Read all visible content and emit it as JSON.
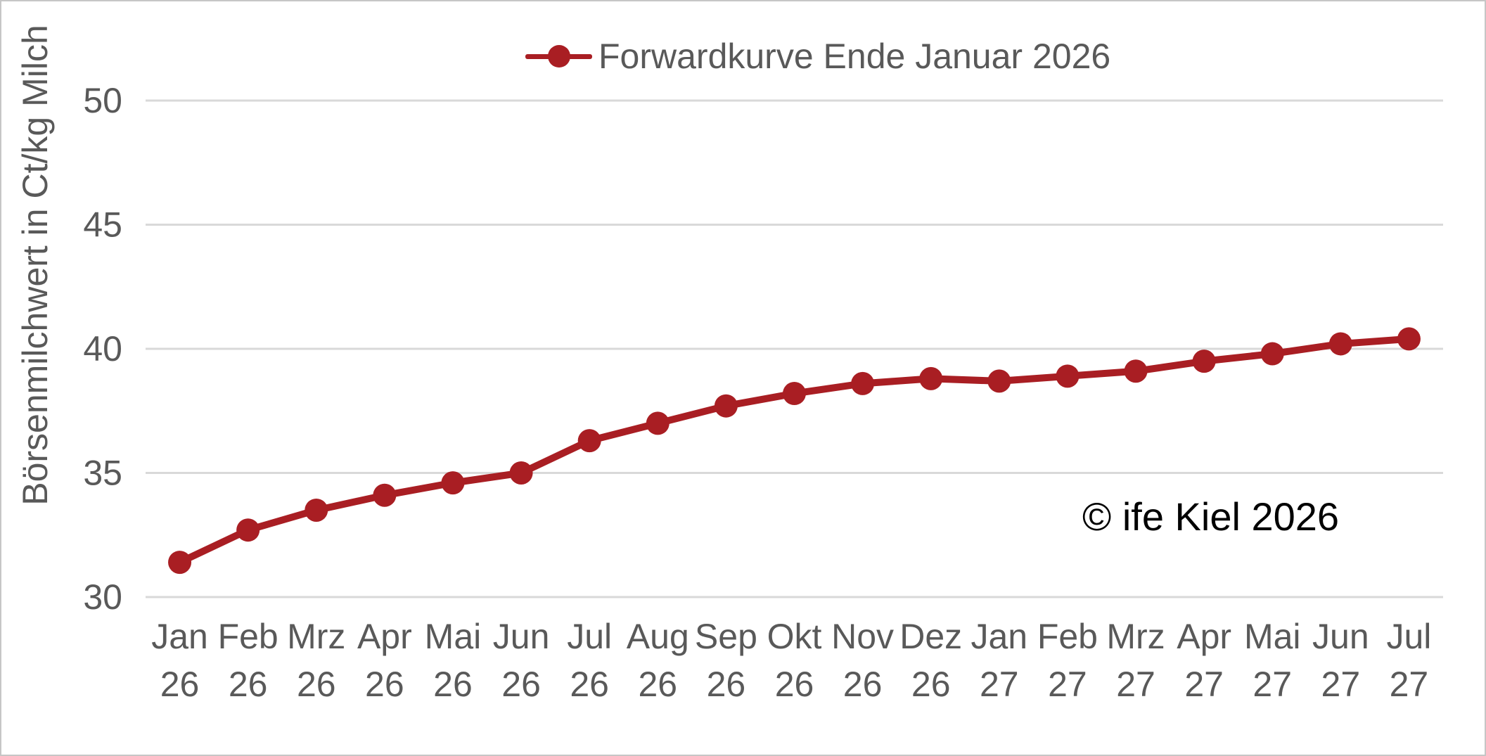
{
  "chart_data": {
    "type": "line",
    "title": "",
    "xlabel": "",
    "ylabel": "Börsenmilchwert in Ct/kg Milch",
    "ylim": [
      30,
      50
    ],
    "yticks": [
      30,
      35,
      40,
      45,
      50
    ],
    "grid": "horizontal",
    "legend_position": "top-center",
    "categories": [
      "Jan 26",
      "Feb 26",
      "Mrz 26",
      "Apr 26",
      "Mai 26",
      "Jun 26",
      "Jul 26",
      "Aug 26",
      "Sep 26",
      "Okt 26",
      "Nov 26",
      "Dez 26",
      "Jan 27",
      "Feb 27",
      "Mrz 27",
      "Apr 27",
      "Mai 27",
      "Jun 27",
      "Jul 27"
    ],
    "series": [
      {
        "name": "Forwardkurve Ende Januar 2026",
        "marker": "circle",
        "color": "#A91E23",
        "values": [
          31.4,
          32.7,
          33.5,
          34.1,
          34.6,
          35.0,
          36.3,
          37.0,
          37.7,
          38.2,
          38.6,
          38.8,
          38.7,
          38.9,
          39.1,
          39.5,
          39.8,
          40.2,
          40.4
        ]
      }
    ],
    "annotation": "© ife Kiel 2026"
  },
  "colors": {
    "axis_text": "#595959",
    "gridline": "#D9D9D9",
    "series_red": "#A91E23",
    "annotation_text": "#000000",
    "frame_border": "#C6C6C6",
    "background": "#FFFFFF"
  }
}
